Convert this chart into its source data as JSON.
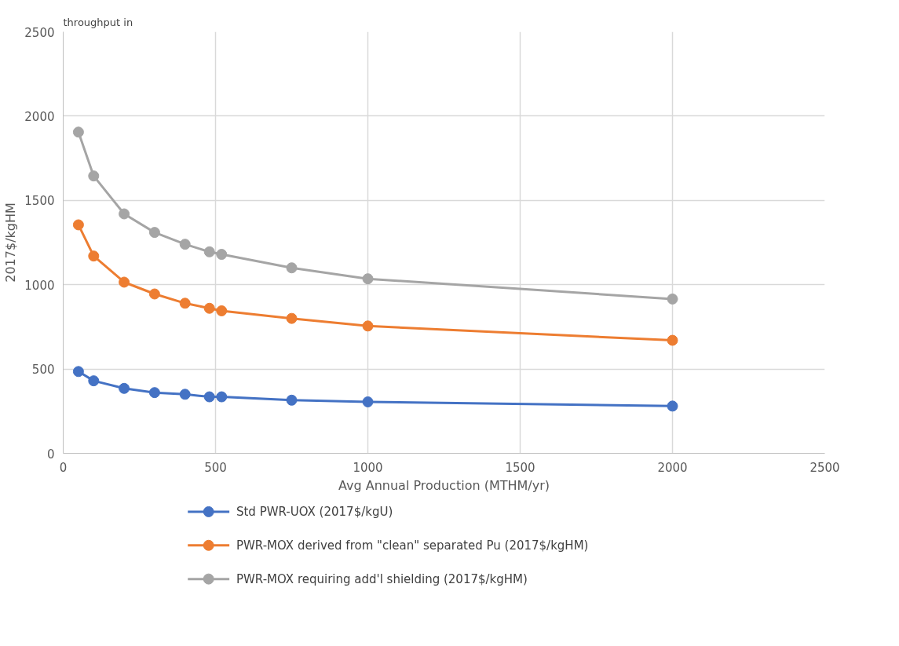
{
  "chart_data": {
    "type": "line",
    "xlabel": "Avg Annual Production (MTHM/yr)",
    "ylabel": "2017$/kgHM",
    "annotations": [
      "throughput in"
    ],
    "x": [
      50,
      100,
      200,
      300,
      400,
      480,
      520,
      750,
      1000,
      2000
    ],
    "series": [
      {
        "name": "Std PWR-UOX  (2017$/kgU)",
        "color": "#4472c4",
        "values": [
          485,
          430,
          385,
          360,
          350,
          335,
          335,
          315,
          305,
          280
        ]
      },
      {
        "name": "PWR-MOX derived from \"clean\" separated Pu                (2017$/kgHM)",
        "color": "#ed7d31",
        "values": [
          1355,
          1170,
          1015,
          945,
          890,
          860,
          845,
          800,
          755,
          670
        ]
      },
      {
        "name": "PWR-MOX requiring add'l shielding   (2017$/kgHM)",
        "color": "#a5a5a5",
        "values": [
          1905,
          1645,
          1420,
          1310,
          1240,
          1195,
          1180,
          1100,
          1035,
          915
        ]
      }
    ],
    "xlim": [
      0,
      2500
    ],
    "ylim": [
      0,
      2500
    ],
    "xticks": [
      0,
      500,
      1000,
      1500,
      2000,
      2500
    ],
    "yticks": [
      0,
      500,
      1000,
      1500,
      2000,
      2500
    ],
    "grid": true,
    "legend": "bottom",
    "marker": "circle",
    "line_style": "solid"
  }
}
